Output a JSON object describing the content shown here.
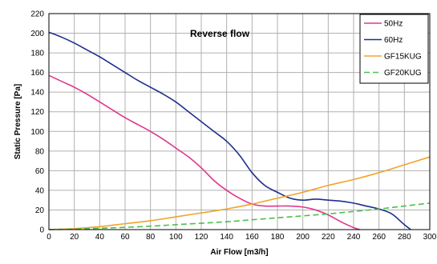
{
  "chart_data": {
    "type": "line",
    "title": "",
    "annotation": "Reverse flow",
    "xlabel": "Air Flow [m3/h]",
    "ylabel": "Static Pressure [Pa]",
    "xlim": [
      0,
      300
    ],
    "ylim": [
      0,
      220
    ],
    "xticks": [
      0,
      20,
      40,
      60,
      80,
      100,
      120,
      140,
      160,
      180,
      200,
      220,
      240,
      260,
      280,
      300
    ],
    "yticks": [
      0,
      20,
      40,
      60,
      80,
      100,
      120,
      140,
      160,
      180,
      200,
      220
    ],
    "grid": true,
    "legend_position": "top-right",
    "series": [
      {
        "name": "50Hz",
        "color": "#e0368c",
        "dash": "solid",
        "x": [
          0,
          10,
          20,
          30,
          40,
          50,
          60,
          70,
          80,
          90,
          100,
          110,
          120,
          130,
          140,
          150,
          160,
          170,
          180,
          190,
          200,
          210,
          220,
          230,
          240,
          245
        ],
        "y": [
          157,
          151,
          145,
          138,
          130,
          122,
          114,
          107,
          100,
          92,
          83,
          74,
          63,
          50,
          40,
          32,
          26,
          24,
          24,
          24,
          23,
          20,
          15,
          8,
          2,
          0
        ]
      },
      {
        "name": "60Hz",
        "color": "#1f2e8c",
        "dash": "solid",
        "x": [
          0,
          10,
          20,
          30,
          40,
          50,
          60,
          70,
          80,
          90,
          100,
          110,
          120,
          130,
          140,
          150,
          160,
          170,
          180,
          190,
          200,
          210,
          220,
          230,
          240,
          250,
          260,
          270,
          280,
          285
        ],
        "y": [
          201,
          196,
          190,
          183,
          176,
          168,
          160,
          152,
          145,
          138,
          130,
          120,
          110,
          100,
          90,
          76,
          58,
          45,
          38,
          32,
          30,
          31,
          30,
          29,
          27,
          24,
          21,
          16,
          5,
          0
        ]
      },
      {
        "name": "GF15KUG",
        "color": "#f0a32a",
        "dash": "solid",
        "x": [
          0,
          20,
          40,
          60,
          80,
          100,
          120,
          140,
          160,
          180,
          200,
          220,
          240,
          260,
          280,
          300
        ],
        "y": [
          0,
          1,
          3,
          6,
          9,
          13,
          17,
          21,
          26,
          32,
          38,
          45,
          51,
          58,
          66,
          74
        ]
      },
      {
        "name": "GF20KUG",
        "color": "#4cc04c",
        "dash": "dashed",
        "x": [
          0,
          20,
          40,
          60,
          80,
          100,
          120,
          140,
          160,
          180,
          200,
          220,
          240,
          260,
          280,
          300
        ],
        "y": [
          0,
          0.5,
          1.3,
          2.3,
          3.5,
          5,
          6.5,
          8,
          10,
          12,
          14,
          16,
          18.5,
          21,
          24,
          27
        ]
      }
    ]
  }
}
